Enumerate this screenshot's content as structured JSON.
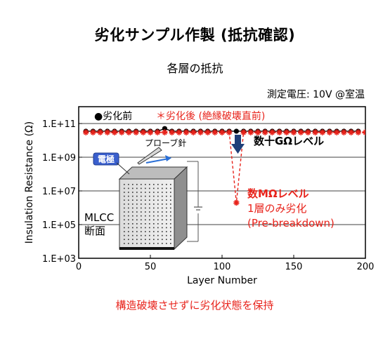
{
  "title": "劣化サンプル作製 (抵抗確認)",
  "subtitle": "各層の抵抗",
  "condition": "測定電圧: 10V @室温",
  "colors": {
    "normal": "#000000",
    "degraded": "#e8231b",
    "arrow": "#1f3f78",
    "electrode": "#3a5fcd"
  },
  "legend": {
    "normal": "●劣化前",
    "degraded": "＊劣化後 (絶縁破壊直前)"
  },
  "annotations": {
    "level_high": "数十GΩレベル",
    "level_low": "数MΩレベル",
    "single_layer": "1層のみ劣化",
    "pre_breakdown": "(Pre-breakdown)",
    "probe": "プローブ針",
    "electrode": "電極",
    "mlcc_line1": "MLCC",
    "mlcc_line2": "断面"
  },
  "footer": "構造破壊させずに劣化状態を保持",
  "chart_data": {
    "type": "scatter",
    "xlabel": "Layer Number",
    "ylabel": "Insulation Resistance (Ω)",
    "xlim": [
      0,
      200
    ],
    "ylim": [
      1000,
      1000000000000
    ],
    "yscale": "log",
    "xticks": [
      0,
      50,
      100,
      150,
      200
    ],
    "xtick_labels": [
      "0",
      "50",
      "100",
      "150",
      "200"
    ],
    "yticks": [
      1000,
      100000,
      10000000,
      1000000000,
      100000000000
    ],
    "ytick_labels": [
      "1.E+03",
      "1.E+05",
      "1.E+07",
      "1.E+09",
      "1.E+11"
    ],
    "series": [
      {
        "name": "劣化前",
        "marker": "circle",
        "x": [
          5,
          10,
          15,
          20,
          25,
          30,
          35,
          40,
          45,
          50,
          55,
          60,
          65,
          70,
          75,
          80,
          85,
          90,
          95,
          100,
          105,
          110,
          115,
          120,
          125,
          130,
          135,
          140,
          145,
          150,
          155,
          160,
          165,
          170,
          175,
          180,
          185,
          190,
          195
        ],
        "y": [
          35000000000.0,
          35000000000.0,
          35000000000.0,
          35000000000.0,
          35000000000.0,
          35000000000.0,
          35000000000.0,
          35000000000.0,
          35000000000.0,
          35000000000.0,
          35000000000.0,
          50000000000.0,
          35000000000.0,
          35000000000.0,
          35000000000.0,
          35000000000.0,
          35000000000.0,
          35000000000.0,
          35000000000.0,
          35000000000.0,
          35000000000.0,
          35000000000.0,
          35000000000.0,
          35000000000.0,
          35000000000.0,
          35000000000.0,
          35000000000.0,
          35000000000.0,
          35000000000.0,
          35000000000.0,
          35000000000.0,
          35000000000.0,
          35000000000.0,
          35000000000.0,
          35000000000.0,
          35000000000.0,
          35000000000.0,
          35000000000.0,
          35000000000.0
        ]
      },
      {
        "name": "劣化後 (絶縁破壊直前)",
        "marker": "asterisk",
        "x": [
          5,
          10,
          15,
          20,
          25,
          30,
          35,
          40,
          45,
          50,
          55,
          60,
          65,
          70,
          75,
          80,
          85,
          90,
          95,
          100,
          105,
          110,
          115,
          120,
          125,
          130,
          135,
          140,
          145,
          150,
          155,
          160,
          165,
          170,
          175,
          180,
          185,
          190,
          195,
          200
        ],
        "y": [
          30000000000.0,
          30000000000.0,
          30000000000.0,
          30000000000.0,
          30000000000.0,
          30000000000.0,
          30000000000.0,
          30000000000.0,
          30000000000.0,
          30000000000.0,
          30000000000.0,
          30000000000.0,
          30000000000.0,
          30000000000.0,
          30000000000.0,
          30000000000.0,
          30000000000.0,
          30000000000.0,
          30000000000.0,
          30000000000.0,
          30000000000.0,
          2000000.0,
          30000000000.0,
          30000000000.0,
          30000000000.0,
          30000000000.0,
          30000000000.0,
          30000000000.0,
          30000000000.0,
          30000000000.0,
          30000000000.0,
          30000000000.0,
          30000000000.0,
          30000000000.0,
          30000000000.0,
          30000000000.0,
          30000000000.0,
          30000000000.0,
          30000000000.0,
          30000000000.0
        ]
      }
    ]
  }
}
